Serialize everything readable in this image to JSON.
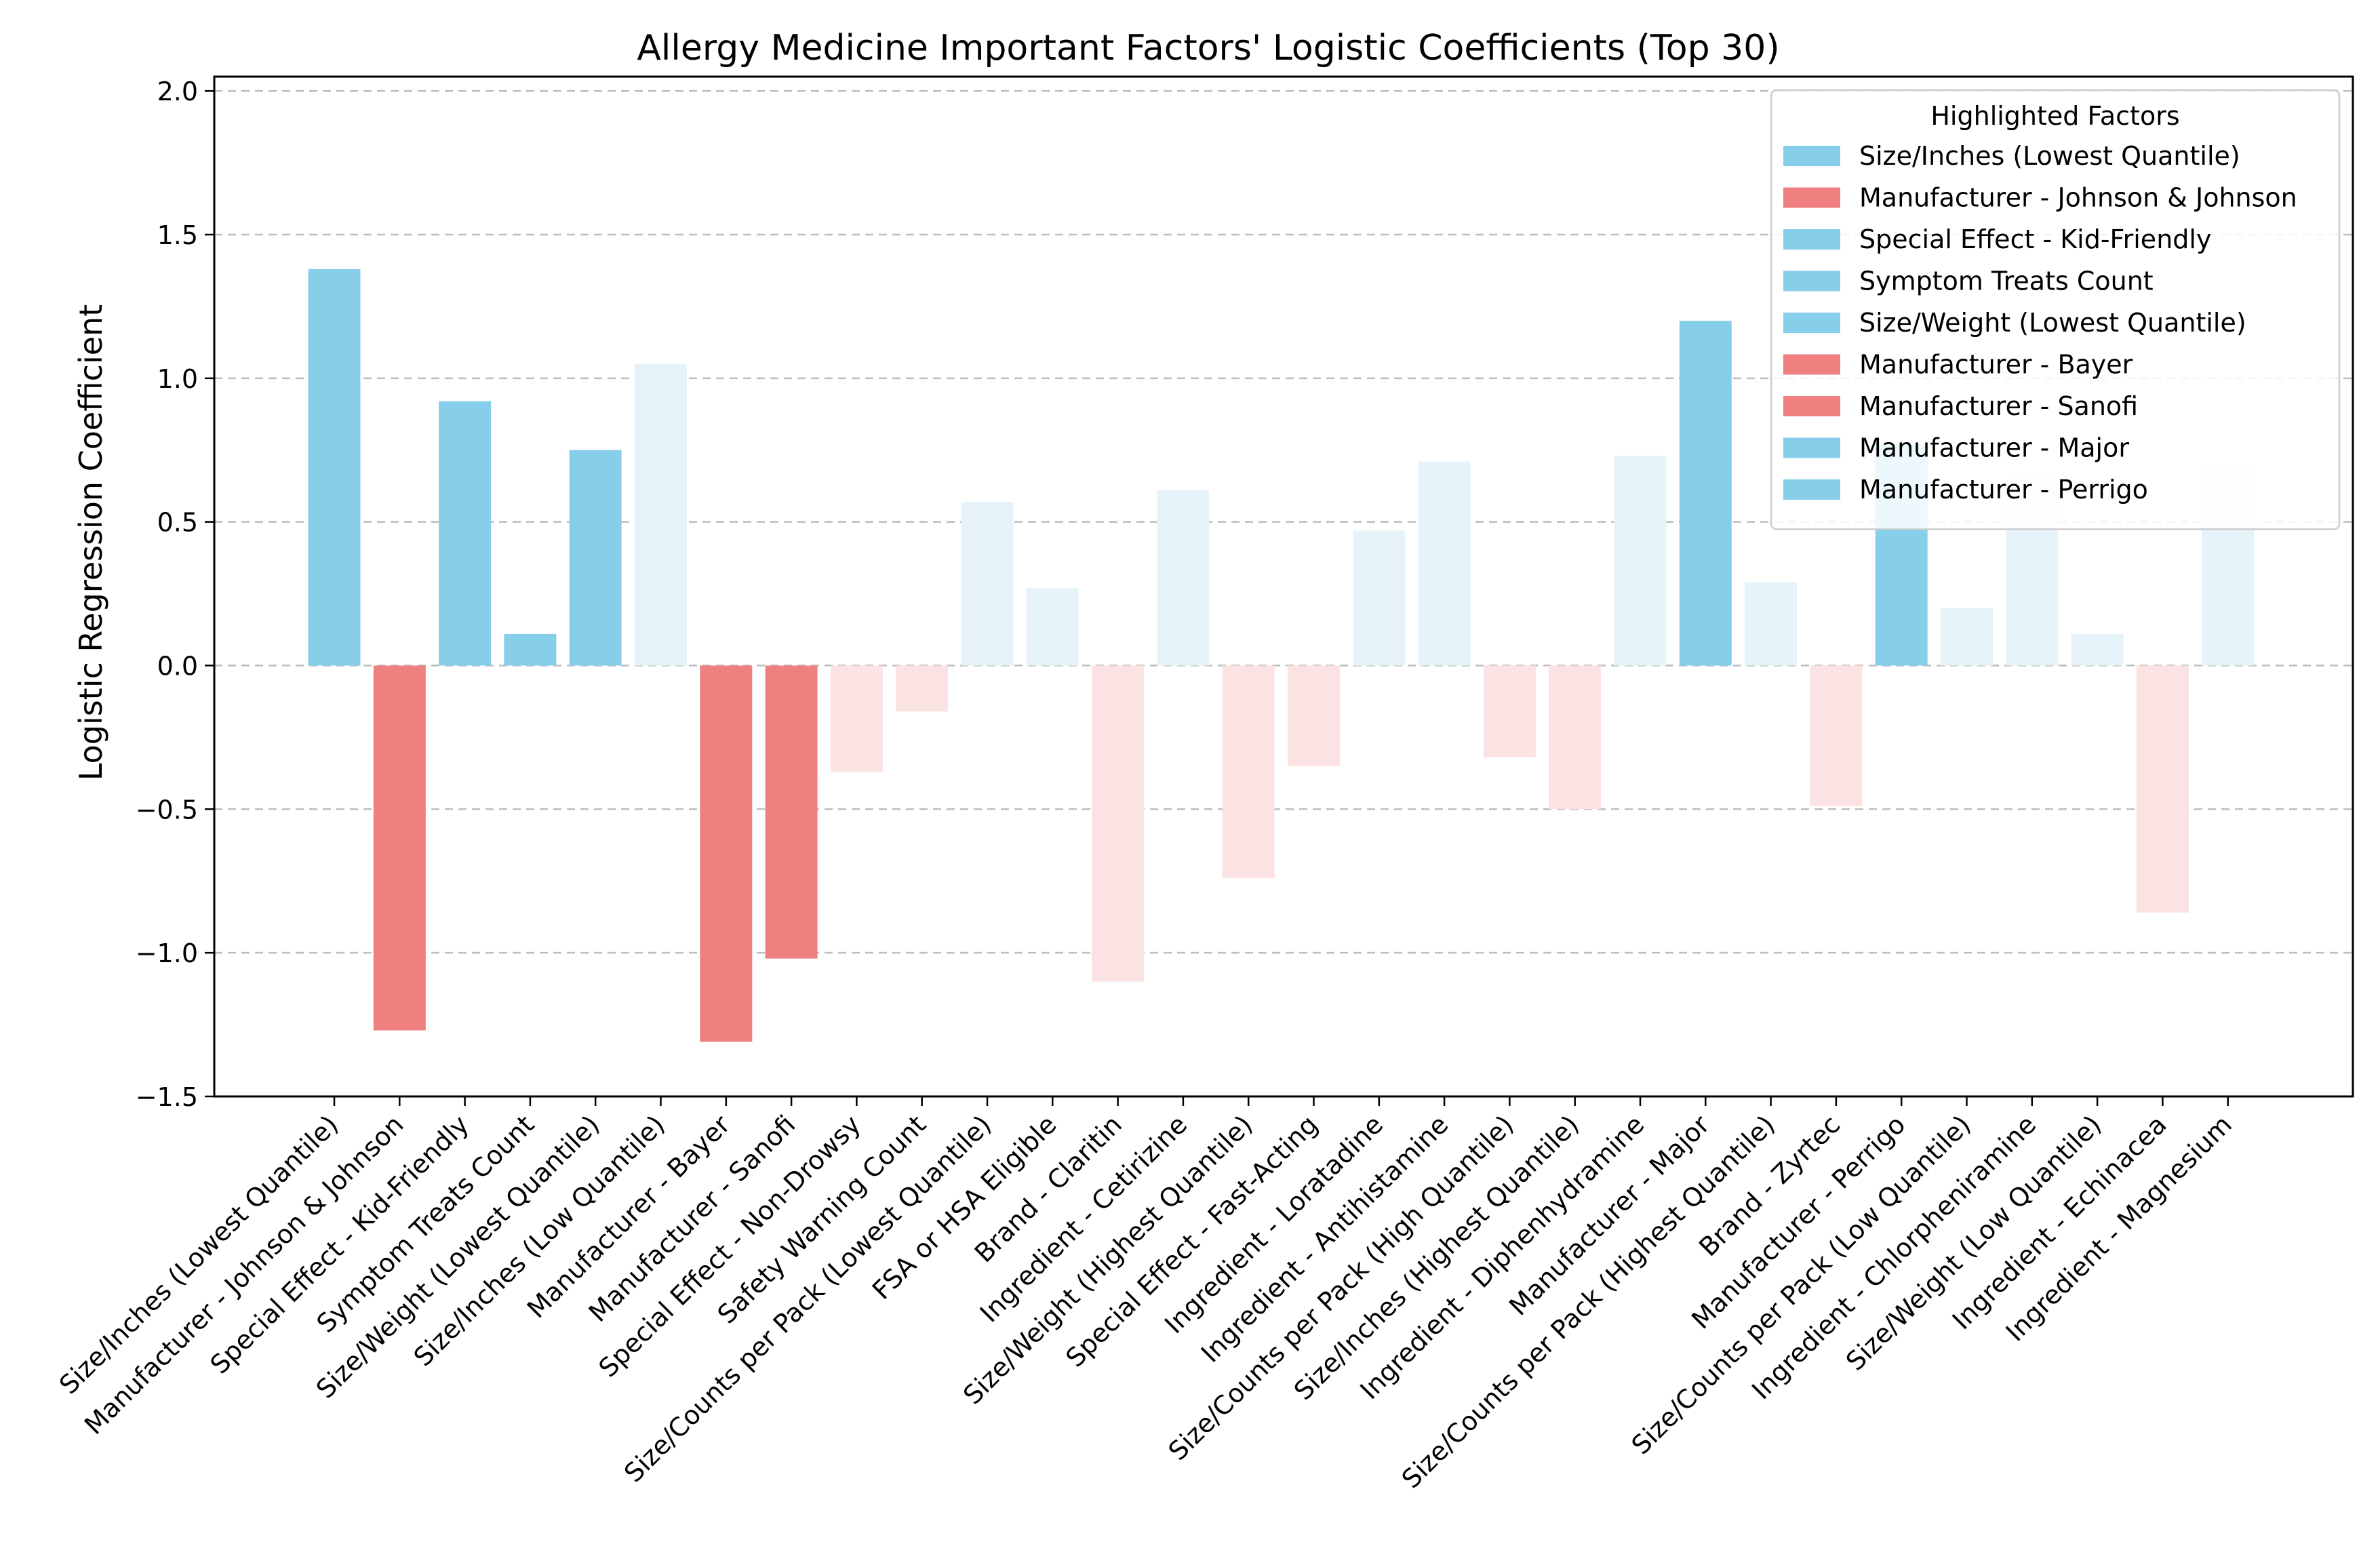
{
  "chart_data": {
    "type": "bar",
    "title": "Allergy Medicine Important Factors' Logistic Coefficients (Top 30)",
    "xlabel": "",
    "ylabel": "Logistic Regression Coefficient",
    "ylim": [
      -1.5,
      2.05
    ],
    "yticks": [
      2.0,
      1.5,
      1.0,
      0.5,
      0.0,
      -0.5,
      -1.0,
      -1.5
    ],
    "ytick_labels": [
      "2.0",
      "1.5",
      "1.0",
      "0.5",
      "0.0",
      "−0.5",
      "−1.0",
      "−1.5"
    ],
    "grid": true,
    "colors": {
      "positive": "#87CEEB",
      "negative": "#F08080",
      "positive_faded": "#E6F4FA",
      "negative_faded": "#FBE3E3",
      "grid": "#bdbdbd",
      "axis": "#000000"
    },
    "bars": [
      {
        "label": "Size/Inches (Lowest Quantile)",
        "value": 1.38,
        "highlight": true
      },
      {
        "label": "Manufacturer - Johnson & Johnson",
        "value": -1.27,
        "highlight": true
      },
      {
        "label": "Special Effect - Kid-Friendly",
        "value": 0.92,
        "highlight": true
      },
      {
        "label": "Symptom Treats Count",
        "value": 0.11,
        "highlight": true
      },
      {
        "label": "Size/Weight (Lowest Quantile)",
        "value": 0.75,
        "highlight": true
      },
      {
        "label": "Size/Inches (Low Quantile)",
        "value": 1.05,
        "highlight": false
      },
      {
        "label": "Manufacturer - Bayer",
        "value": -1.31,
        "highlight": true
      },
      {
        "label": "Manufacturer - Sanofi",
        "value": -1.02,
        "highlight": true
      },
      {
        "label": "Special Effect - Non-Drowsy",
        "value": -0.37,
        "highlight": false
      },
      {
        "label": "Safety Warning Count",
        "value": -0.16,
        "highlight": false
      },
      {
        "label": "Size/Counts per Pack (Lowest Quantile)",
        "value": 0.57,
        "highlight": false
      },
      {
        "label": "FSA or HSA Eligible",
        "value": 0.27,
        "highlight": false
      },
      {
        "label": "Brand - Claritin",
        "value": -1.1,
        "highlight": false
      },
      {
        "label": "Ingredient - Cetirizine",
        "value": 0.61,
        "highlight": false
      },
      {
        "label": "Size/Weight (Highest Quantile)",
        "value": -0.74,
        "highlight": false
      },
      {
        "label": "Special Effect - Fast-Acting",
        "value": -0.35,
        "highlight": false
      },
      {
        "label": "Ingredient - Loratadine",
        "value": 0.47,
        "highlight": false
      },
      {
        "label": "Ingredient - Antihistamine",
        "value": 0.71,
        "highlight": false
      },
      {
        "label": "Size/Counts per Pack (High Quantile)",
        "value": -0.32,
        "highlight": false
      },
      {
        "label": "Size/Inches (Highest Quantile)",
        "value": -0.5,
        "highlight": false
      },
      {
        "label": "Ingredient - Diphenhydramine",
        "value": 0.73,
        "highlight": false
      },
      {
        "label": "Manufacturer - Major",
        "value": 1.2,
        "highlight": true
      },
      {
        "label": "Size/Counts per Pack (Highest Quantile)",
        "value": 0.29,
        "highlight": false
      },
      {
        "label": "Brand - Zyrtec",
        "value": -0.49,
        "highlight": false
      },
      {
        "label": "Manufacturer - Perrigo",
        "value": 0.77,
        "highlight": true
      },
      {
        "label": "Size/Counts per Pack (Low Quantile)",
        "value": 0.2,
        "highlight": false
      },
      {
        "label": "Ingredient - Chlorpheniramine",
        "value": 0.66,
        "highlight": false
      },
      {
        "label": "Size/Weight (Low Quantile)",
        "value": 0.11,
        "highlight": false
      },
      {
        "label": "Ingredient - Echinacea",
        "value": -0.86,
        "highlight": false
      },
      {
        "label": "Ingredient - Magnesium",
        "value": 0.7,
        "highlight": false
      }
    ],
    "legend": {
      "title": "Highlighted Factors",
      "placement": "top-right",
      "entries": [
        {
          "label": "Size/Inches (Lowest Quantile)",
          "color": "#87CEEB"
        },
        {
          "label": "Manufacturer - Johnson & Johnson",
          "color": "#F08080"
        },
        {
          "label": "Special Effect - Kid-Friendly",
          "color": "#87CEEB"
        },
        {
          "label": "Symptom Treats Count",
          "color": "#87CEEB"
        },
        {
          "label": "Size/Weight (Lowest Quantile)",
          "color": "#87CEEB"
        },
        {
          "label": "Manufacturer - Bayer",
          "color": "#F08080"
        },
        {
          "label": "Manufacturer - Sanofi",
          "color": "#F08080"
        },
        {
          "label": "Manufacturer - Major",
          "color": "#87CEEB"
        },
        {
          "label": "Manufacturer - Perrigo",
          "color": "#87CEEB"
        }
      ]
    }
  }
}
